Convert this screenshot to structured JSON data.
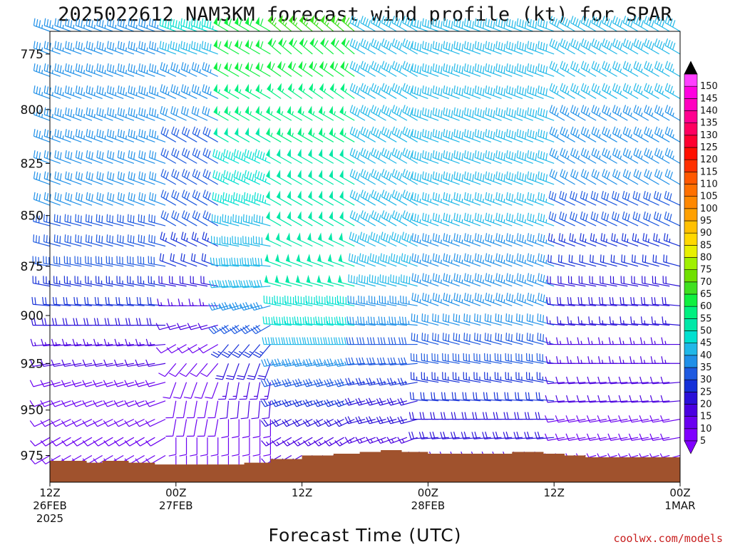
{
  "chart_data": {
    "type": "wind_barb_time_height",
    "title": "2025022612 NAM3KM forecast wind profile (kt) for SPAR",
    "xlabel": "Forecast Time (UTC)",
    "ylabel": "",
    "credit": "coolwx.com/models",
    "x_range_hours": [
      0,
      60
    ],
    "y_range_hpa": [
      990,
      765
    ],
    "y_scale": "log_pressure",
    "y_ticks": [
      775,
      800,
      825,
      850,
      875,
      900,
      925,
      950,
      975
    ],
    "x_ticks": [
      {
        "hour": 0,
        "lines": [
          "12Z",
          "26FEB",
          "2025"
        ]
      },
      {
        "hour": 12,
        "lines": [
          "00Z",
          "27FEB"
        ]
      },
      {
        "hour": 24,
        "lines": [
          "12Z"
        ]
      },
      {
        "hour": 36,
        "lines": [
          "00Z",
          "28FEB"
        ]
      },
      {
        "hour": 48,
        "lines": [
          "12Z"
        ]
      },
      {
        "hour": 60,
        "lines": [
          "00Z",
          "1MAR"
        ]
      }
    ],
    "units": "kt",
    "colorbar": {
      "levels": [
        5,
        10,
        15,
        20,
        25,
        30,
        35,
        40,
        45,
        50,
        55,
        60,
        65,
        70,
        75,
        80,
        85,
        90,
        95,
        100,
        105,
        110,
        115,
        120,
        125,
        130,
        135,
        140,
        145,
        150
      ],
      "colors": [
        "#8000ff",
        "#6a00f0",
        "#4a00e0",
        "#2a10d8",
        "#1530d8",
        "#1e5ae0",
        "#2090e8",
        "#20b8e8",
        "#00e0d0",
        "#00e8a8",
        "#00f080",
        "#10f040",
        "#40e020",
        "#70e000",
        "#a0f000",
        "#e8f000",
        "#ffd800",
        "#ffc000",
        "#ffa000",
        "#ff8800",
        "#ff7000",
        "#ff5800",
        "#ff3000",
        "#ff1000",
        "#ff0030",
        "#ff0060",
        "#ff0090",
        "#ff00c0",
        "#ff00e0",
        "#ff40ff"
      ],
      "arrow_top_color": "#000000",
      "arrow_bottom_color": "#8000ff"
    },
    "terrain_color": "#a0522d",
    "surface_pressure": [
      {
        "hour": 0,
        "hpa": 978
      },
      {
        "hour": 1.5,
        "hpa": 978
      },
      {
        "hour": 3.5,
        "hpa": 979
      },
      {
        "hour": 5,
        "hpa": 978
      },
      {
        "hour": 7.5,
        "hpa": 979
      },
      {
        "hour": 10,
        "hpa": 980
      },
      {
        "hour": 17,
        "hpa": 980
      },
      {
        "hour": 18.5,
        "hpa": 979
      },
      {
        "hour": 21,
        "hpa": 977
      },
      {
        "hour": 24,
        "hpa": 975
      },
      {
        "hour": 27,
        "hpa": 974
      },
      {
        "hour": 29.5,
        "hpa": 973
      },
      {
        "hour": 31.5,
        "hpa": 972
      },
      {
        "hour": 33.5,
        "hpa": 973
      },
      {
        "hour": 36,
        "hpa": 974
      },
      {
        "hour": 40,
        "hpa": 974
      },
      {
        "hour": 44,
        "hpa": 973
      },
      {
        "hour": 47,
        "hpa": 974
      },
      {
        "hour": 49,
        "hpa": 975
      },
      {
        "hour": 51,
        "hpa": 976
      },
      {
        "hour": 56,
        "hpa": 976
      },
      {
        "hour": 60,
        "hpa": 976
      }
    ],
    "wind_levels_hpa": [
      765,
      775,
      785,
      795,
      805,
      815,
      825,
      835,
      845,
      855,
      865,
      875,
      885,
      895,
      905,
      915,
      925,
      935,
      945,
      955,
      965,
      975
    ],
    "wind_segments": [
      {
        "hours": [
          0,
          11
        ],
        "speeds_kt": [
          35,
          35,
          35,
          35,
          35,
          35,
          32,
          32,
          32,
          30,
          30,
          28,
          25,
          22,
          18,
          15,
          12,
          10,
          10,
          8,
          8,
          8
        ],
        "dirs_deg": [
          290,
          290,
          290,
          290,
          290,
          290,
          290,
          290,
          290,
          285,
          285,
          280,
          280,
          275,
          270,
          265,
          260,
          255,
          250,
          245,
          240,
          240
        ]
      },
      {
        "hours": [
          12,
          16
        ],
        "speeds_kt": [
          45,
          40,
          35,
          35,
          32,
          30,
          30,
          30,
          28,
          28,
          25,
          22,
          20,
          15,
          12,
          10,
          10,
          8,
          8,
          8,
          8,
          8
        ],
        "dirs_deg": [
          290,
          290,
          295,
          295,
          295,
          300,
          300,
          300,
          300,
          300,
          295,
          290,
          280,
          270,
          255,
          240,
          220,
          200,
          190,
          190,
          180,
          180
        ]
      },
      {
        "hours": [
          17,
          21
        ],
        "speeds_kt": [
          60,
          60,
          60,
          55,
          55,
          50,
          45,
          45,
          45,
          40,
          40,
          40,
          38,
          35,
          30,
          25,
          20,
          15,
          12,
          10,
          10,
          8
        ],
        "dirs_deg": [
          300,
          300,
          300,
          300,
          300,
          300,
          295,
          295,
          290,
          285,
          280,
          275,
          265,
          255,
          240,
          220,
          200,
          190,
          185,
          180,
          180,
          180
        ]
      },
      {
        "hours": [
          22,
          29
        ],
        "speeds_kt": [
          65,
          60,
          60,
          55,
          55,
          55,
          50,
          50,
          50,
          50,
          50,
          48,
          48,
          45,
          45,
          40,
          35,
          30,
          25,
          20,
          15,
          12
        ],
        "dirs_deg": [
          310,
          310,
          305,
          305,
          300,
          300,
          300,
          300,
          300,
          300,
          295,
          290,
          285,
          280,
          275,
          270,
          260,
          255,
          250,
          245,
          240,
          240
        ]
      },
      {
        "hours": [
          30,
          35
        ],
        "speeds_kt": [
          40,
          40,
          40,
          40,
          40,
          40,
          40,
          40,
          40,
          40,
          40,
          38,
          38,
          35,
          35,
          30,
          28,
          25,
          20,
          18,
          15,
          15
        ],
        "dirs_deg": [
          300,
          300,
          300,
          300,
          300,
          300,
          300,
          300,
          300,
          300,
          295,
          290,
          285,
          280,
          275,
          270,
          265,
          260,
          255,
          255,
          250,
          250
        ]
      },
      {
        "hours": [
          36,
          48
        ],
        "speeds_kt": [
          38,
          38,
          38,
          38,
          38,
          38,
          38,
          38,
          36,
          36,
          35,
          35,
          35,
          35,
          32,
          30,
          28,
          25,
          22,
          20,
          18,
          15
        ],
        "dirs_deg": [
          290,
          290,
          290,
          290,
          290,
          290,
          290,
          290,
          290,
          290,
          290,
          290,
          290,
          290,
          285,
          285,
          280,
          280,
          275,
          270,
          265,
          260
        ]
      },
      {
        "hours": [
          49,
          60
        ],
        "speeds_kt": [
          38,
          38,
          36,
          36,
          35,
          35,
          35,
          32,
          30,
          28,
          25,
          22,
          20,
          18,
          16,
          15,
          14,
          12,
          12,
          10,
          10,
          10
        ],
        "dirs_deg": [
          300,
          300,
          300,
          300,
          300,
          300,
          300,
          300,
          295,
          295,
          290,
          285,
          280,
          275,
          275,
          270,
          270,
          265,
          265,
          260,
          260,
          255
        ]
      }
    ]
  }
}
